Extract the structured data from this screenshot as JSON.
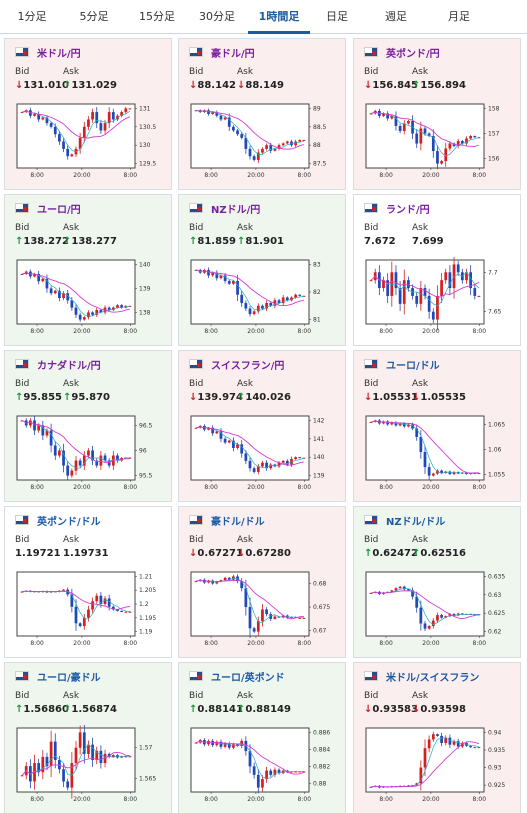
{
  "tabs": [
    {
      "label": "1分足",
      "active": false
    },
    {
      "label": "5分足",
      "active": false
    },
    {
      "label": "15分足",
      "active": false
    },
    {
      "label": "30分足",
      "active": false
    },
    {
      "label": "1時間足",
      "active": true
    },
    {
      "label": "日足",
      "active": false
    },
    {
      "label": "週足",
      "active": false
    },
    {
      "label": "月足",
      "active": false
    }
  ],
  "labels": {
    "bid": "Bid",
    "ask": "Ask"
  },
  "colors": {
    "up_arrow": "#1a9b3c",
    "down_arrow": "#d22020",
    "up_card": "#eef6ee",
    "down_card": "#fbeeee",
    "jpy_pair": "#7a1f9e",
    "other_pair": "#1b5aa6",
    "candle_up": "#d42020",
    "candle_down": "#2048b8",
    "ma_line": "#d63cd6",
    "fast_line": "#2aa8c8"
  },
  "cards": [
    {
      "pair": "米ドル/円",
      "flag": "us-jp-flag-icon",
      "state": "down",
      "jpy": true,
      "bid_dir": "down",
      "bid": "131.010",
      "ask_dir": "up",
      "ask": "131.029",
      "chart_data": {
        "type": "candlestick",
        "yticks": [
          "131",
          "130.5",
          "130",
          "129.5"
        ],
        "xticks": [
          "8:00",
          "20:00",
          "8:00"
        ],
        "closes": [
          130.9,
          130.95,
          130.8,
          130.85,
          130.7,
          130.75,
          130.6,
          130.5,
          130.3,
          130.1,
          129.9,
          129.7,
          129.75,
          129.9,
          130.2,
          130.5,
          130.7,
          130.9,
          130.6,
          130.4,
          130.6,
          130.9,
          130.7,
          130.8,
          130.9,
          131.0,
          131.0
        ]
      }
    },
    {
      "pair": "豪ドル/円",
      "flag": "au-jp-flag-icon",
      "state": "down",
      "jpy": true,
      "bid_dir": "down",
      "bid": "88.142",
      "ask_dir": "down",
      "ask": "88.149",
      "chart_data": {
        "type": "candlestick",
        "yticks": [
          "89",
          "88.5",
          "88",
          "87.5"
        ],
        "xticks": [
          "8:00",
          "20:00",
          "8:00"
        ],
        "closes": [
          88.95,
          88.9,
          88.95,
          88.85,
          88.9,
          88.8,
          88.7,
          88.75,
          88.5,
          88.4,
          88.3,
          88.2,
          87.9,
          87.7,
          87.6,
          87.8,
          87.9,
          88.0,
          87.85,
          87.9,
          88.0,
          88.05,
          88.1,
          88.0,
          88.1,
          88.14,
          88.14
        ]
      }
    },
    {
      "pair": "英ポンド/円",
      "flag": "gb-jp-flag-icon",
      "state": "down",
      "jpy": true,
      "bid_dir": "down",
      "bid": "156.845",
      "ask_dir": "up",
      "ask": "156.894",
      "chart_data": {
        "type": "candlestick",
        "yticks": [
          "158",
          "157",
          "156"
        ],
        "xticks": [
          "8:00",
          "20:00",
          "8:00"
        ],
        "closes": [
          157.8,
          157.9,
          157.7,
          157.8,
          157.6,
          157.7,
          157.3,
          157.1,
          157.4,
          157.5,
          157.0,
          156.6,
          157.2,
          157.0,
          156.9,
          156.3,
          155.8,
          155.9,
          156.4,
          156.6,
          156.5,
          156.7,
          156.6,
          156.8,
          156.9,
          156.85,
          156.85
        ]
      }
    },
    {
      "pair": "ユーロ/円",
      "flag": "eu-jp-flag-icon",
      "state": "up",
      "jpy": true,
      "bid_dir": "up",
      "bid": "138.272",
      "ask_dir": "up",
      "ask": "138.277",
      "chart_data": {
        "type": "candlestick",
        "yticks": [
          "140",
          "139",
          "138"
        ],
        "xticks": [
          "8:00",
          "20:00",
          "8:00"
        ],
        "closes": [
          139.6,
          139.7,
          139.5,
          139.6,
          139.3,
          139.4,
          139.0,
          138.8,
          138.9,
          138.6,
          138.8,
          138.5,
          138.2,
          137.9,
          137.7,
          137.8,
          138.0,
          137.9,
          138.1,
          138.0,
          138.2,
          138.1,
          138.2,
          138.3,
          138.2,
          138.27,
          138.27
        ]
      }
    },
    {
      "pair": "NZドル/円",
      "flag": "nz-jp-flag-icon",
      "state": "up",
      "jpy": true,
      "bid_dir": "up",
      "bid": "81.859",
      "ask_dir": "up",
      "ask": "81.901",
      "chart_data": {
        "type": "candlestick",
        "yticks": [
          "83",
          "82",
          "81"
        ],
        "xticks": [
          "8:00",
          "20:00",
          "8:00"
        ],
        "closes": [
          82.8,
          82.7,
          82.8,
          82.6,
          82.7,
          82.5,
          82.6,
          82.4,
          82.3,
          82.4,
          81.9,
          81.6,
          81.4,
          81.2,
          81.3,
          81.5,
          81.4,
          81.6,
          81.5,
          81.7,
          81.6,
          81.8,
          81.7,
          81.8,
          81.9,
          81.86,
          81.86
        ]
      }
    },
    {
      "pair": "ランド/円",
      "flag": "za-jp-flag-icon",
      "state": "flat",
      "jpy": true,
      "bid_dir": "none",
      "bid": "7.672",
      "ask_dir": "none",
      "ask": "7.699",
      "chart_data": {
        "type": "candlestick",
        "yticks": [
          "7.7",
          "7.65"
        ],
        "xticks": [
          "8:00",
          "20:00",
          "8:00"
        ],
        "closes": [
          7.69,
          7.7,
          7.68,
          7.69,
          7.67,
          7.7,
          7.68,
          7.66,
          7.69,
          7.68,
          7.67,
          7.66,
          7.68,
          7.67,
          7.65,
          7.64,
          7.67,
          7.69,
          7.7,
          7.68,
          7.71,
          7.7,
          7.69,
          7.7,
          7.68,
          7.67,
          7.67
        ]
      }
    },
    {
      "pair": "カナダドル/円",
      "flag": "ca-jp-flag-icon",
      "state": "up",
      "jpy": true,
      "bid_dir": "up",
      "bid": "95.855",
      "ask_dir": "up",
      "ask": "95.870",
      "chart_data": {
        "type": "candlestick",
        "yticks": [
          "96.5",
          "96",
          "95.5"
        ],
        "xticks": [
          "8:00",
          "20:00",
          "8:00"
        ],
        "closes": [
          96.6,
          96.5,
          96.6,
          96.4,
          96.5,
          96.3,
          96.4,
          96.1,
          95.9,
          96.0,
          95.7,
          95.5,
          95.6,
          95.8,
          95.7,
          95.9,
          96.0,
          95.8,
          95.7,
          95.9,
          95.8,
          95.7,
          95.9,
          95.8,
          95.85,
          95.86,
          95.86
        ]
      }
    },
    {
      "pair": "スイスフラン/円",
      "flag": "ch-jp-flag-icon",
      "state": "down",
      "jpy": true,
      "bid_dir": "down",
      "bid": "139.974",
      "ask_dir": "up",
      "ask": "140.026",
      "chart_data": {
        "type": "candlestick",
        "yticks": [
          "142",
          "141",
          "140",
          "139"
        ],
        "xticks": [
          "8:00",
          "20:00",
          "8:00"
        ],
        "closes": [
          141.6,
          141.7,
          141.5,
          141.6,
          141.3,
          141.4,
          141.0,
          140.8,
          140.9,
          140.5,
          140.7,
          140.2,
          139.8,
          139.4,
          139.2,
          139.5,
          139.7,
          139.4,
          139.6,
          139.5,
          139.7,
          139.8,
          139.6,
          139.9,
          140.0,
          139.97,
          139.97
        ]
      }
    },
    {
      "pair": "ユーロ/ドル",
      "flag": "eu-us-flag-icon",
      "state": "down",
      "jpy": false,
      "bid_dir": "down",
      "bid": "1.05531",
      "ask_dir": "down",
      "ask": "1.05535",
      "chart_data": {
        "type": "candlestick",
        "yticks": [
          "1.065",
          "1.06",
          "1.055"
        ],
        "xticks": [
          "8:00",
          "20:00",
          "8:00"
        ],
        "closes": [
          1.0655,
          1.0658,
          1.0652,
          1.0656,
          1.065,
          1.0654,
          1.0648,
          1.0652,
          1.0646,
          1.065,
          1.0642,
          1.0625,
          1.0595,
          1.0565,
          1.0548,
          1.0552,
          1.0558,
          1.0553,
          1.0556,
          1.0551,
          1.0555,
          1.0552,
          1.0554,
          1.0551,
          1.0553,
          1.0553,
          1.0553
        ]
      }
    },
    {
      "pair": "英ポンド/ドル",
      "flag": "gb-us-flag-icon",
      "state": "flat",
      "jpy": false,
      "bid_dir": "none",
      "bid": "1.19721",
      "ask_dir": "none",
      "ask": "1.19731",
      "chart_data": {
        "type": "candlestick",
        "yticks": [
          "1.21",
          "1.205",
          "1.2",
          "1.195",
          "1.19"
        ],
        "xticks": [
          "8:00",
          "20:00",
          "8:00"
        ],
        "closes": [
          1.2045,
          1.2048,
          1.2044,
          1.2046,
          1.2043,
          1.2047,
          1.2042,
          1.2046,
          1.2044,
          1.2048,
          1.2052,
          1.2035,
          1.199,
          1.193,
          1.192,
          1.195,
          1.198,
          1.201,
          1.203,
          1.2,
          1.202,
          1.199,
          1.198,
          1.1975,
          1.1972,
          1.1972,
          1.1972
        ]
      }
    },
    {
      "pair": "豪ドル/ドル",
      "flag": "au-us-flag-icon",
      "state": "down",
      "jpy": false,
      "bid_dir": "down",
      "bid": "0.67271",
      "ask_dir": "down",
      "ask": "0.67280",
      "chart_data": {
        "type": "candlestick",
        "yticks": [
          "0.68",
          "0.675",
          "0.67"
        ],
        "xticks": [
          "8:00",
          "20:00",
          "8:00"
        ],
        "closes": [
          0.6805,
          0.6808,
          0.6802,
          0.6806,
          0.68,
          0.6804,
          0.6807,
          0.6812,
          0.6808,
          0.6815,
          0.6805,
          0.679,
          0.675,
          0.6705,
          0.6698,
          0.672,
          0.6745,
          0.6735,
          0.6725,
          0.673,
          0.6728,
          0.6732,
          0.6727,
          0.6729,
          0.6727,
          0.6727,
          0.6727
        ]
      }
    },
    {
      "pair": "NZドル/ドル",
      "flag": "nz-us-flag-icon",
      "state": "up",
      "jpy": false,
      "bid_dir": "up",
      "bid": "0.62472",
      "ask_dir": "up",
      "ask": "0.62516",
      "chart_data": {
        "type": "candlestick",
        "yticks": [
          "0.635",
          "0.63",
          "0.625",
          "0.62"
        ],
        "xticks": [
          "8:00",
          "20:00",
          "8:00"
        ],
        "closes": [
          0.6305,
          0.6308,
          0.6302,
          0.6306,
          0.6308,
          0.6312,
          0.6318,
          0.6322,
          0.6315,
          0.6312,
          0.6295,
          0.6265,
          0.6222,
          0.6208,
          0.6215,
          0.623,
          0.6245,
          0.6238,
          0.6242,
          0.6248,
          0.6244,
          0.6249,
          0.6246,
          0.6248,
          0.6247,
          0.6247,
          0.6247
        ]
      }
    },
    {
      "pair": "ユーロ/豪ドル",
      "flag": "eu-au-flag-icon",
      "state": "up",
      "jpy": false,
      "bid_dir": "up",
      "bid": "1.56860",
      "ask_dir": "up",
      "ask": "1.56874",
      "chart_data": {
        "type": "candlestick",
        "yticks": [
          "1.57",
          "1.565"
        ],
        "xticks": [
          "8:00",
          "20:00",
          "8:00"
        ],
        "closes": [
          1.5655,
          1.567,
          1.5645,
          1.5675,
          1.566,
          1.5685,
          1.567,
          1.571,
          1.568,
          1.5665,
          1.5645,
          1.5635,
          1.5675,
          1.57,
          1.5725,
          1.569,
          1.5705,
          1.568,
          1.5695,
          1.5675,
          1.569,
          1.5685,
          1.5688,
          1.5684,
          1.5686,
          1.5686,
          1.5686
        ]
      }
    },
    {
      "pair": "ユーロ/英ポンド",
      "flag": "eu-gb-flag-icon",
      "state": "up",
      "jpy": false,
      "bid_dir": "up",
      "bid": "0.88141",
      "ask_dir": "up",
      "ask": "0.88149",
      "chart_data": {
        "type": "candlestick",
        "yticks": [
          "0.886",
          "0.884",
          "0.882",
          "0.88"
        ],
        "xticks": [
          "8:00",
          "20:00",
          "8:00"
        ],
        "closes": [
          0.8848,
          0.8851,
          0.8846,
          0.885,
          0.8845,
          0.8849,
          0.8843,
          0.8847,
          0.8842,
          0.8846,
          0.8844,
          0.885,
          0.8838,
          0.882,
          0.881,
          0.8795,
          0.8805,
          0.8815,
          0.881,
          0.8816,
          0.8812,
          0.8815,
          0.8813,
          0.8814,
          0.8814,
          0.8814,
          0.8814
        ]
      }
    },
    {
      "pair": "米ドル/スイスフラン",
      "flag": "us-ch-flag-icon",
      "state": "down",
      "jpy": false,
      "bid_dir": "down",
      "bid": "0.93583",
      "ask_dir": "down",
      "ask": "0.93598",
      "chart_data": {
        "type": "candlestick",
        "yticks": [
          "0.94",
          "0.935",
          "0.93",
          "0.925"
        ],
        "xticks": [
          "8:00",
          "20:00",
          "8:00"
        ],
        "closes": [
          0.9245,
          0.9248,
          0.9243,
          0.9246,
          0.9244,
          0.9247,
          0.9245,
          0.9248,
          0.9246,
          0.9249,
          0.925,
          0.9255,
          0.93,
          0.9355,
          0.938,
          0.9395,
          0.939,
          0.937,
          0.9385,
          0.9365,
          0.9375,
          0.936,
          0.937,
          0.9362,
          0.9358,
          0.9358,
          0.9358
        ]
      }
    }
  ]
}
